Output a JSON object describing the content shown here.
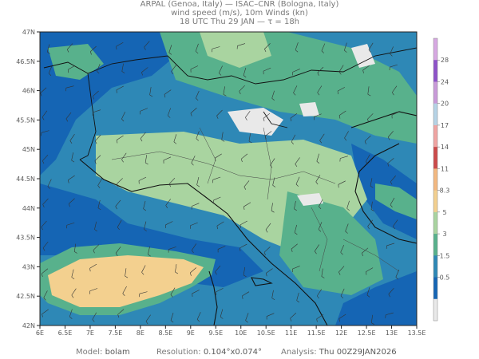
{
  "header": {
    "line1": "ARPAL (Genoa, Italy)  —  ISAC–CNR (Bologna, Italy)",
    "line2": "wind speed (m/s), 10m Winds (kn)",
    "line3": "18 UTC Thu 29 JAN  —  τ = 18h"
  },
  "lat_labels": [
    "47N",
    "46.5N",
    "46N",
    "45.5N",
    "45N",
    "44.5N",
    "44N",
    "43.5N",
    "43N",
    "42.5N",
    "42N"
  ],
  "lon_labels": [
    "6E",
    "6.5E",
    "7E",
    "7.5E",
    "8E",
    "8.5E",
    "9E",
    "9.5E",
    "10E",
    "10.5E",
    "11E",
    "11.5E",
    "12E",
    "12.5E",
    "13E",
    "13.5E"
  ],
  "colorbar": {
    "labels": [
      "28",
      "24",
      "20",
      "17",
      "14",
      "11",
      "8.3",
      "5",
      "3",
      "1.5",
      "0.5"
    ],
    "colors": [
      "#d7a8e2",
      "#8e52c9",
      "#c99ad9",
      "#b6d3e6",
      "#f0a4a2",
      "#cc4a4a",
      "#f3b880",
      "#f3d08f",
      "#a9d4a0",
      "#58b18c",
      "#2e88b6",
      "#1565b4",
      "#e9e9e9"
    ]
  },
  "footer": {
    "model_label": "Model:",
    "model_value": "bolam",
    "resolution_label": "Resolution:",
    "resolution_value": "0.104°x0.074°",
    "analysis_label": "Analysis:",
    "analysis_value": "Thu  00Z29JAN2026"
  },
  "watermark": "ARPAL"
}
